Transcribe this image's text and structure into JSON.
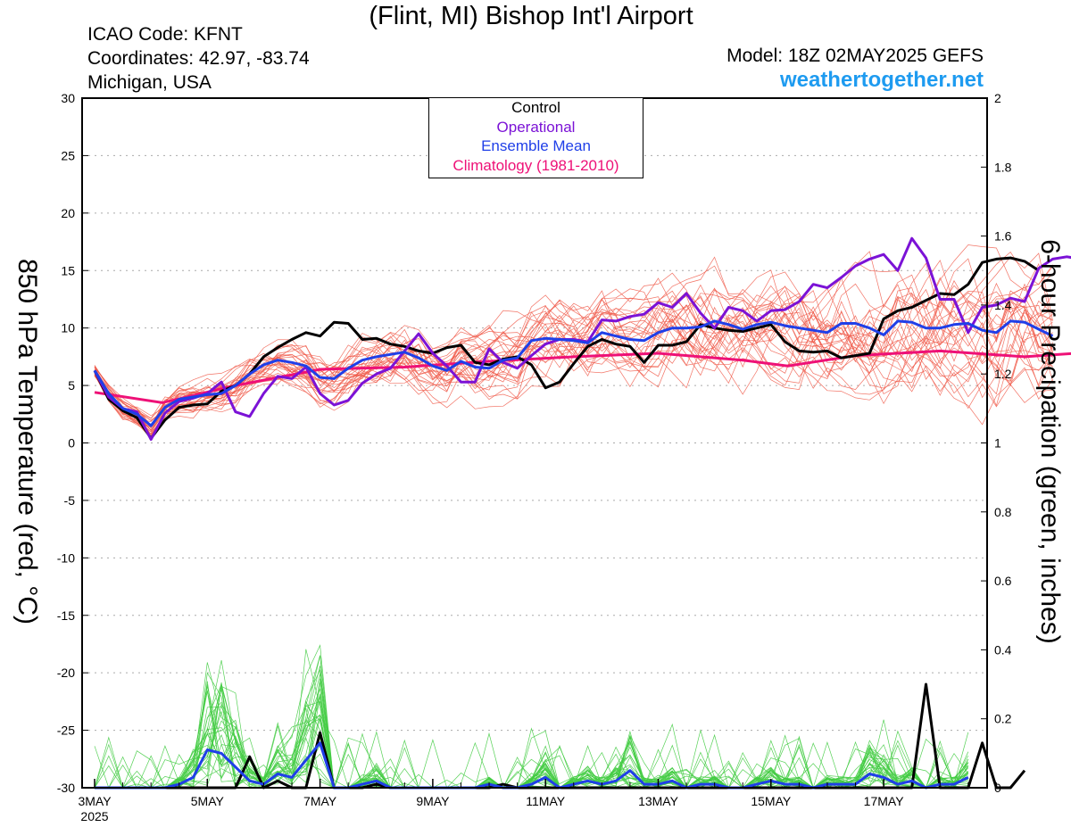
{
  "header": {
    "title": "(Flint, MI) Bishop Int'l Airport",
    "icao": "ICAO Code: KFNT",
    "coordinates": "Coordinates: 42.97, -83.74",
    "region": "Michigan, USA",
    "model": "Model: 18Z 02MAY2025 GEFS",
    "site": "weathertogether.net"
  },
  "axes": {
    "left_label": "850 hPa Temperature (red, °C)",
    "right_label": "6-hour Precipation (green, inches)",
    "left_ticks": [
      "30",
      "25",
      "20",
      "15",
      "10",
      "5",
      "0",
      "-5",
      "-10",
      "-15",
      "-20",
      "-25",
      "-30"
    ],
    "right_ticks": [
      "2",
      "1.8",
      "1.6",
      "1.4",
      "1.2",
      "1",
      "0.8",
      "0.6",
      "0.4",
      "0.2",
      "0"
    ],
    "x_ticks": [
      "3MAY",
      "5MAY",
      "7MAY",
      "9MAY",
      "11MAY",
      "13MAY",
      "15MAY",
      "17MAY"
    ],
    "x_year": "2025"
  },
  "legend": {
    "control": "Control",
    "operational": "Operational",
    "ensemble_mean": "Ensemble Mean",
    "climatology": "Climatology (1981-2010)"
  },
  "colors": {
    "control": "#000000",
    "operational": "#7b12d6",
    "ensemble_mean": "#1f3fe8",
    "climatology": "#ee1177",
    "members_temp": "#f05a4a",
    "members_precip": "#44cc44"
  },
  "chart_data": {
    "type": "line",
    "x_unit": "days since 3MAY 00Z",
    "x_step_hours": 6,
    "temp_ylim": [
      -30,
      30
    ],
    "precip_ylim": [
      0,
      2
    ],
    "temperature_series": [
      {
        "name": "Control",
        "values": [
          6.3,
          3.8,
          2.8,
          2.2,
          0.4,
          2.0,
          3.1,
          3.3,
          3.4,
          4.5,
          5.0,
          6.0,
          7.5,
          8.3,
          9.0,
          9.6,
          9.3,
          10.5,
          10.4,
          9.0,
          9.1,
          8.6,
          8.4,
          8.0,
          7.8,
          8.3,
          8.5,
          7.0,
          6.8,
          7.3,
          7.5,
          6.8,
          4.8,
          5.3,
          6.9,
          8.4,
          9.0,
          8.6,
          8.4,
          7.0,
          8.5,
          8.5,
          8.8,
          10.3,
          10.0,
          9.8,
          9.7,
          10.0,
          10.3,
          8.8,
          8.0,
          7.9,
          8.0,
          7.4,
          7.6,
          7.8,
          10.8,
          11.5,
          11.8,
          12.4,
          13.0,
          12.9,
          13.8,
          15.7,
          16.0,
          16.1,
          15.8,
          15.0
        ]
      },
      {
        "name": "Operational",
        "values": [
          6.3,
          4.0,
          3.0,
          2.7,
          0.3,
          2.6,
          3.6,
          3.9,
          4.3,
          5.3,
          2.7,
          2.3,
          4.3,
          5.8,
          5.6,
          6.6,
          4.3,
          3.3,
          3.7,
          5.2,
          6.0,
          6.5,
          8.0,
          9.5,
          7.8,
          6.7,
          5.3,
          5.3,
          8.2,
          7.0,
          6.5,
          7.6,
          8.6,
          9.0,
          9.0,
          8.8,
          10.7,
          10.6,
          11.0,
          11.2,
          12.2,
          11.8,
          13.0,
          11.3,
          10.0,
          11.8,
          11.5,
          10.6,
          11.5,
          11.6,
          12.3,
          13.8,
          13.5,
          14.4,
          15.4,
          16.0,
          16.4,
          15.0,
          17.8,
          16.1,
          12.5,
          12.5,
          9.6,
          11.8,
          12.0,
          12.6,
          12.3,
          15.2,
          16.0,
          16.2,
          16.0
        ]
      },
      {
        "name": "Ensemble Mean",
        "values": [
          6.3,
          4.3,
          3.0,
          2.5,
          1.5,
          3.1,
          3.8,
          4.0,
          4.2,
          4.3,
          5.0,
          6.0,
          6.8,
          7.2,
          7.0,
          6.7,
          5.7,
          5.6,
          6.5,
          7.2,
          7.5,
          7.7,
          7.9,
          7.4,
          6.7,
          6.3,
          7.1,
          6.6,
          6.5,
          7.2,
          7.4,
          8.9,
          9.1,
          9.0,
          8.9,
          8.7,
          9.6,
          9.3,
          9.0,
          8.9,
          9.6,
          10.0,
          10.0,
          10.1,
          10.6,
          10.3,
          9.9,
          10.3,
          10.5,
          10.2,
          10.0,
          9.8,
          9.6,
          10.4,
          10.4,
          10.0,
          9.4,
          10.6,
          10.5,
          10.0,
          10.0,
          10.3,
          10.4,
          9.8,
          9.6,
          10.6,
          10.5,
          9.9,
          9.3
        ]
      }
    ],
    "climatology": {
      "name": "Climatology (1981-2010)",
      "days": [
        0,
        1.2,
        2.5,
        4,
        5.5,
        7,
        8.5,
        10,
        11.5,
        12.3,
        13.5,
        15,
        16.5,
        18
      ],
      "values": [
        4.4,
        3.5,
        5.0,
        6.4,
        6.6,
        7.1,
        7.5,
        7.8,
        7.2,
        6.7,
        7.6,
        8.0,
        7.5,
        8.0
      ]
    },
    "precip_series": [
      {
        "name": "Control",
        "values": [
          0,
          0,
          0,
          0,
          0,
          0,
          0,
          0,
          0,
          0,
          0,
          0.09,
          0,
          0.02,
          0,
          0,
          0.16,
          0,
          0,
          0,
          0.01,
          0,
          0,
          0,
          0,
          0,
          0,
          0,
          0,
          0.01,
          0,
          0,
          0,
          0,
          0,
          0,
          0,
          0,
          0,
          0,
          0,
          0,
          0,
          0,
          0,
          0,
          0,
          0,
          0,
          0,
          0,
          0,
          0,
          0,
          0,
          0,
          0,
          0,
          0,
          0.3,
          0,
          0,
          0,
          0.13,
          0,
          0,
          0.05
        ]
      },
      {
        "name": "Ensemble Mean",
        "values": [
          0,
          0,
          0,
          0,
          0,
          0,
          0.01,
          0.03,
          0.11,
          0.1,
          0.06,
          0.02,
          0.01,
          0.04,
          0.03,
          0.08,
          0.13,
          0,
          0,
          0.01,
          0.02,
          0,
          0,
          0,
          0,
          0,
          0,
          0,
          0.01,
          0,
          0,
          0.01,
          0.03,
          0,
          0.01,
          0.02,
          0.01,
          0.02,
          0.05,
          0.01,
          0.01,
          0.02,
          0,
          0.01,
          0.01,
          0,
          0,
          0.01,
          0.02,
          0.01,
          0.01,
          0,
          0.01,
          0.01,
          0.01,
          0.04,
          0.03,
          0.01,
          0.02,
          0,
          0.01,
          0.01,
          0.03
        ]
      }
    ]
  }
}
